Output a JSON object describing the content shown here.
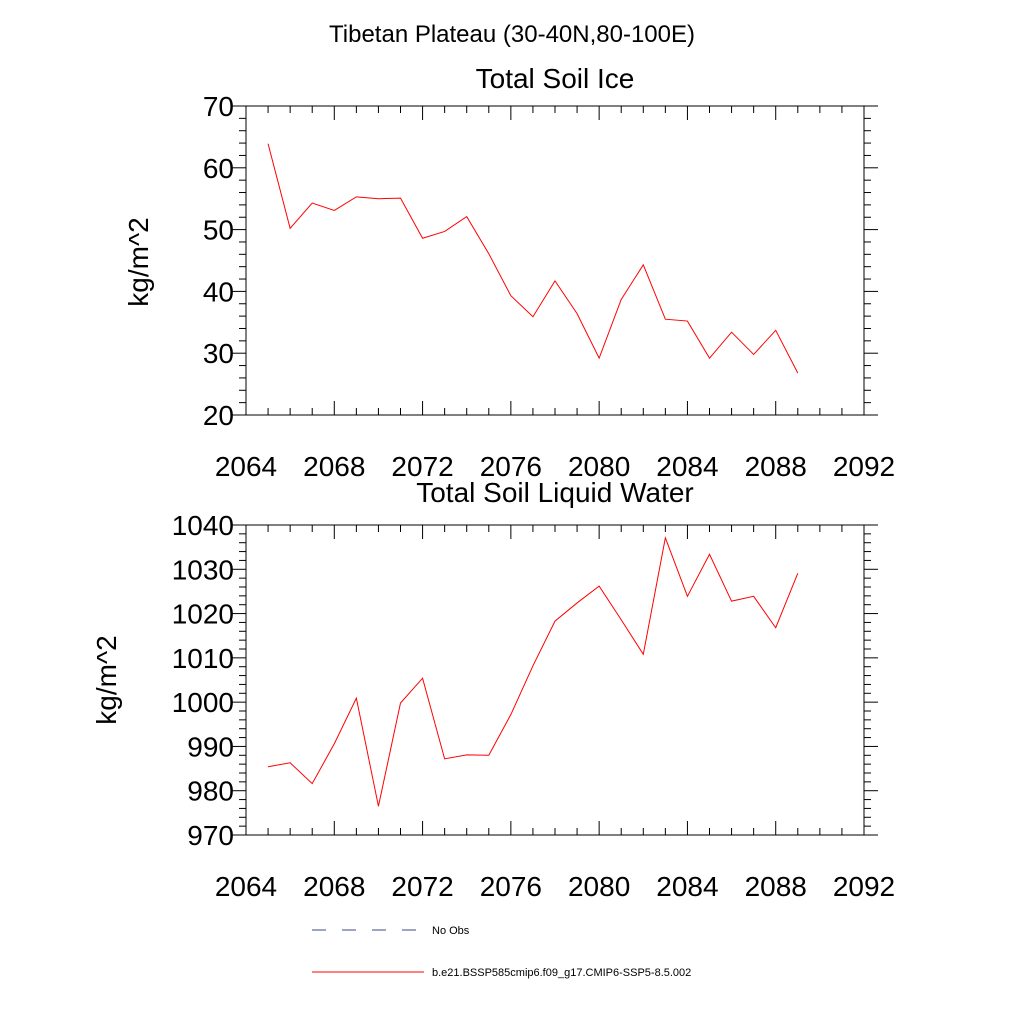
{
  "figure_title": "Tibetan Plateau (30-40N,80-100E)",
  "colors": {
    "series": "#ff0000",
    "obs": "#3a4a8a",
    "axis": "#000000"
  },
  "chart_data": [
    {
      "type": "line",
      "title": "Total Soil Ice",
      "xlabel": "",
      "ylabel": "kg/m^2",
      "xlim": [
        2064,
        2092
      ],
      "ylim": [
        20,
        70
      ],
      "xticks": [
        2064,
        2068,
        2072,
        2076,
        2080,
        2084,
        2088,
        2092
      ],
      "yticks": [
        20,
        30,
        40,
        50,
        60,
        70
      ],
      "x_minor_step": 1,
      "y_minor_step": 2,
      "grid": false,
      "series": [
        {
          "name": "b.e21.BSSP585cmip6.f09_g17.CMIP6-SSP5-8.5.002",
          "x": [
            2065,
            2066,
            2067,
            2068,
            2069,
            2070,
            2071,
            2072,
            2073,
            2074,
            2075,
            2076,
            2077,
            2078,
            2079,
            2080,
            2081,
            2082,
            2083,
            2084,
            2085,
            2086,
            2087,
            2088,
            2089
          ],
          "y": [
            63.9,
            50.2,
            54.3,
            53.1,
            55.3,
            55.0,
            55.1,
            48.6,
            49.7,
            52.1,
            46.1,
            39.3,
            35.9,
            41.7,
            36.4,
            29.2,
            38.7,
            44.3,
            35.5,
            35.2,
            29.2,
            33.4,
            29.8,
            33.7,
            26.8
          ]
        }
      ]
    },
    {
      "type": "line",
      "title": "Total Soil Liquid Water",
      "xlabel": "",
      "ylabel": "kg/m^2",
      "xlim": [
        2064,
        2092
      ],
      "ylim": [
        970,
        1040
      ],
      "xticks": [
        2064,
        2068,
        2072,
        2076,
        2080,
        2084,
        2088,
        2092
      ],
      "yticks": [
        970,
        980,
        990,
        1000,
        1010,
        1020,
        1030,
        1040
      ],
      "x_minor_step": 1,
      "y_minor_step": 2,
      "grid": false,
      "series": [
        {
          "name": "b.e21.BSSP585cmip6.f09_g17.CMIP6-SSP5-8.5.002",
          "x": [
            2065,
            2066,
            2067,
            2068,
            2069,
            2070,
            2071,
            2072,
            2073,
            2074,
            2075,
            2076,
            2077,
            2078,
            2079,
            2080,
            2081,
            2082,
            2083,
            2084,
            2085,
            2086,
            2087,
            2088,
            2089
          ],
          "y": [
            985.4,
            986.3,
            981.6,
            990.6,
            1000.9,
            976.5,
            999.8,
            1005.4,
            987.2,
            988.1,
            988.0,
            997.2,
            1008.2,
            1018.3,
            1022.4,
            1026.2,
            1018.6,
            1010.8,
            1037.1,
            1023.9,
            1033.4,
            1022.8,
            1023.9,
            1016.8,
            1029.1
          ]
        }
      ]
    }
  ],
  "legend": {
    "placement": "bottom",
    "items": [
      {
        "label": "No Obs",
        "style": "dashed",
        "color_key": "obs"
      },
      {
        "label": "b.e21.BSSP585cmip6.f09_g17.CMIP6-SSP5-8.5.002",
        "style": "solid",
        "color_key": "series"
      }
    ]
  }
}
